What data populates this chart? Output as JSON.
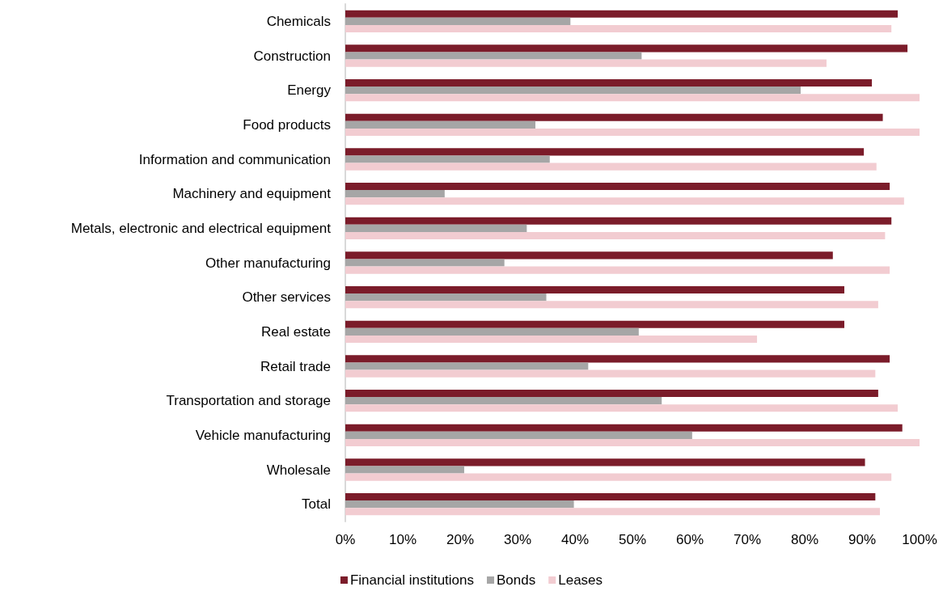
{
  "chart_data": {
    "type": "bar",
    "orientation": "horizontal",
    "categories": [
      "Chemicals",
      "Construction",
      "Energy",
      "Food products",
      "Information and communication",
      "Machinery and equipment",
      "Metals, electronic and electrical equipment",
      "Other manufacturing",
      "Other services",
      "Real estate",
      "Retail trade",
      "Transportation and storage",
      "Vehicle manufacturing",
      "Wholesale",
      "Total"
    ],
    "series": [
      {
        "name": "Financial institutions",
        "color": "#7b1c2a",
        "values": [
          96.2,
          97.9,
          91.7,
          93.6,
          90.3,
          94.8,
          95.1,
          84.9,
          86.9,
          86.9,
          94.8,
          92.8,
          97.0,
          90.5,
          92.3
        ]
      },
      {
        "name": "Bonds",
        "color": "#a6a6a6",
        "values": [
          39.2,
          51.6,
          79.3,
          33.1,
          35.6,
          17.3,
          31.6,
          27.7,
          35.0,
          51.1,
          42.3,
          55.1,
          60.4,
          20.7,
          39.8
        ]
      },
      {
        "name": "Leases",
        "color": "#f2ccd1",
        "values": [
          95.1,
          83.8,
          100,
          100,
          92.5,
          97.3,
          94.0,
          94.8,
          92.8,
          71.7,
          92.3,
          96.2,
          100,
          95.1,
          93.1
        ]
      }
    ],
    "xlim": [
      0,
      100
    ],
    "xticks": [
      {
        "value": 0,
        "label": "0%"
      },
      {
        "value": 10,
        "label": "10%"
      },
      {
        "value": 20,
        "label": "20%"
      },
      {
        "value": 30,
        "label": "30%"
      },
      {
        "value": 40,
        "label": "40%"
      },
      {
        "value": 50,
        "label": "50%"
      },
      {
        "value": 60,
        "label": "60%"
      },
      {
        "value": 70,
        "label": "70%"
      },
      {
        "value": 80,
        "label": "80%"
      },
      {
        "value": 90,
        "label": "90%"
      },
      {
        "value": 100,
        "label": "100%"
      }
    ],
    "grid": false,
    "legend": "bottom"
  }
}
